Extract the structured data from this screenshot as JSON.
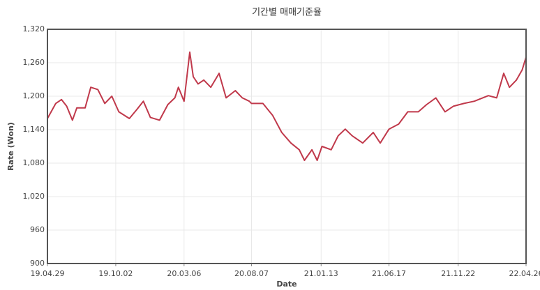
{
  "chart_data": {
    "type": "line",
    "title": "기간별 매매기준율",
    "x_label": "Date",
    "y_label": "Rate (Won)",
    "x": [
      "19.04.29",
      "19.05.18",
      "19.05.31",
      "19.06.12",
      "19.06.25",
      "19.07.05",
      "19.07.24",
      "19.08.06",
      "19.08.22",
      "19.09.07",
      "19.09.23",
      "19.10.09",
      "19.11.02",
      "19.11.18",
      "19.12.04",
      "19.12.20",
      "20.01.10",
      "20.01.29",
      "20.02.14",
      "20.02.22",
      "20.03.06",
      "20.03.19",
      "20.03.27",
      "20.04.07",
      "20.04.20",
      "20.05.06",
      "20.05.25",
      "20.06.10",
      "20.07.01",
      "20.07.17",
      "20.08.02",
      "20.08.07",
      "20.09.02",
      "20.09.24",
      "20.10.15",
      "20.11.05",
      "20.11.24",
      "20.12.06",
      "20.12.23",
      "21.01.04",
      "21.01.15",
      "21.02.05",
      "21.02.21",
      "21.03.09",
      "21.03.25",
      "21.04.18",
      "21.05.12",
      "21.05.28",
      "21.06.17",
      "21.07.09",
      "21.07.30",
      "21.08.23",
      "21.09.11",
      "21.10.02",
      "21.10.23",
      "21.11.11",
      "21.12.05",
      "21.12.29",
      "22.01.30",
      "22.02.18",
      "22.03.06",
      "22.03.19",
      "22.04.04",
      "22.04.17",
      "22.04.26"
    ],
    "series": [
      {
        "color": "#c0394b",
        "values": [
          1160,
          1187,
          1194,
          1182,
          1157,
          1179,
          1179,
          1216,
          1212,
          1187,
          1200,
          1172,
          1160,
          1175,
          1191,
          1162,
          1157,
          1185,
          1197,
          1216,
          1191,
          1279,
          1235,
          1222,
          1229,
          1216,
          1241,
          1197,
          1210,
          1197,
          1191,
          1187,
          1187,
          1166,
          1135,
          1116,
          1104,
          1085,
          1104,
          1085,
          1110,
          1104,
          1129,
          1141,
          1129,
          1116,
          1135,
          1116,
          1141,
          1150,
          1172,
          1172,
          1185,
          1197,
          1172,
          1182,
          1187,
          1191,
          1201,
          1197,
          1241,
          1216,
          1229,
          1247,
          1270
        ]
      }
    ],
    "xlim": [
      "19.04.29",
      "22.04.26"
    ],
    "xticks": [
      "19.04.29",
      "19.10.02",
      "20.03.06",
      "20.08.07",
      "21.01.13",
      "21.06.17",
      "21.11.22",
      "22.04.26"
    ],
    "ylim": [
      900,
      1320
    ],
    "yticks": [
      900,
      960,
      {
        "value": 1020,
        "label": "1,020"
      },
      {
        "value": 1080,
        "label": "1,080"
      },
      {
        "value": 1140,
        "label": "1,140"
      },
      {
        "value": 1200,
        "label": "1,200"
      },
      {
        "value": 1260,
        "label": "1,260"
      },
      {
        "value": 1320,
        "label": "1,320"
      }
    ],
    "grid": true
  }
}
